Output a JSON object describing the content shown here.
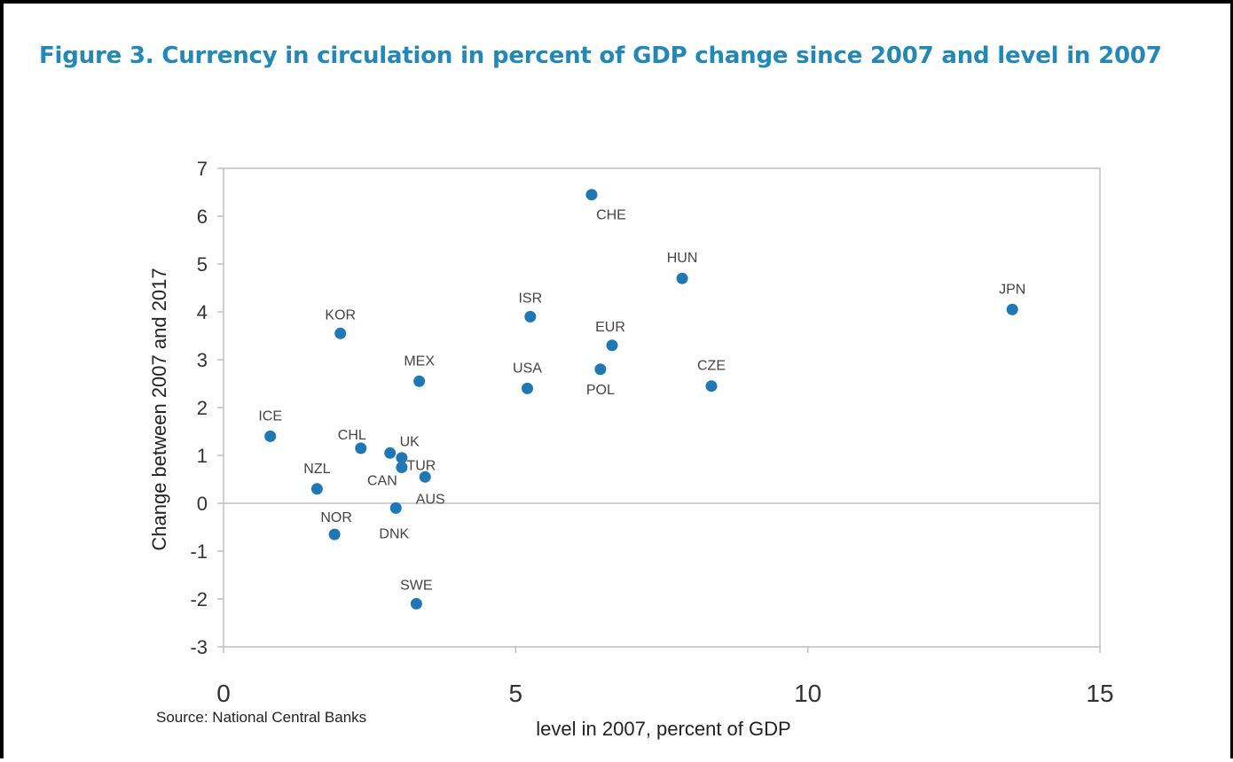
{
  "title": "Figure 3. Currency in circulation in percent of GDP change since 2007 and level in 2007",
  "source": "Source: National Central Banks",
  "accent_color": "#2288b8",
  "marker_color": "#1f77b4",
  "chart_data": {
    "type": "scatter",
    "xlabel": "level in 2007, percent of GDP",
    "ylabel": "Change between 2007 and 2017",
    "xlim": [
      0,
      15
    ],
    "ylim": [
      -3,
      7
    ],
    "xticks": [
      "0",
      "5",
      "10",
      "15"
    ],
    "yticks": [
      "-3",
      "-2",
      "-1",
      "0",
      "1",
      "2",
      "3",
      "4",
      "5",
      "6",
      "7"
    ],
    "grid": false,
    "legend": "none",
    "points": [
      {
        "label": "CHE",
        "x": 6.3,
        "y": 6.45
      },
      {
        "label": "HUN",
        "x": 7.85,
        "y": 4.7
      },
      {
        "label": "JPN",
        "x": 13.5,
        "y": 4.05
      },
      {
        "label": "ISR",
        "x": 5.25,
        "y": 3.9
      },
      {
        "label": "KOR",
        "x": 2.0,
        "y": 3.55
      },
      {
        "label": "EUR",
        "x": 6.65,
        "y": 3.3
      },
      {
        "label": "POL",
        "x": 6.45,
        "y": 2.8
      },
      {
        "label": "MEX",
        "x": 3.35,
        "y": 2.55
      },
      {
        "label": "CZE",
        "x": 8.35,
        "y": 2.45
      },
      {
        "label": "USA",
        "x": 5.2,
        "y": 2.4
      },
      {
        "label": "ICE",
        "x": 0.8,
        "y": 1.4
      },
      {
        "label": "CHL",
        "x": 2.35,
        "y": 1.15
      },
      {
        "label": "UK",
        "x": 2.85,
        "y": 1.05
      },
      {
        "label": "TUR",
        "x": 3.05,
        "y": 0.95
      },
      {
        "label": "CAN",
        "x": 3.05,
        "y": 0.75
      },
      {
        "label": "AUS",
        "x": 3.45,
        "y": 0.55
      },
      {
        "label": "NZL",
        "x": 1.6,
        "y": 0.3
      },
      {
        "label": "DNK",
        "x": 2.95,
        "y": -0.1
      },
      {
        "label": "NOR",
        "x": 1.9,
        "y": -0.65
      },
      {
        "label": "SWE",
        "x": 3.3,
        "y": -2.1
      }
    ]
  }
}
